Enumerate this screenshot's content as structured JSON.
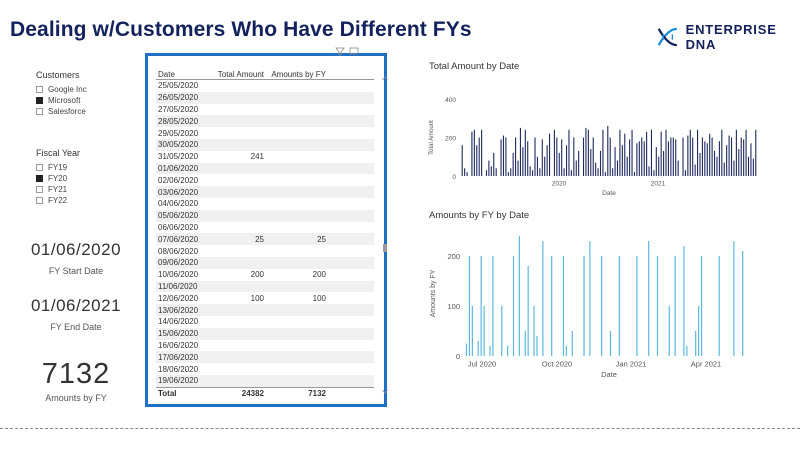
{
  "title": "Dealing w/Customers Who Have Different FYs",
  "logo": {
    "text": "ENTERPRISE DNA",
    "icon": "dna-icon"
  },
  "customers_slicer": {
    "title": "Customers",
    "items": [
      {
        "label": "Google Inc",
        "checked": false
      },
      {
        "label": "Microsoft",
        "checked": true
      },
      {
        "label": "Salesforce",
        "checked": false
      }
    ]
  },
  "fiscal_slicer": {
    "title": "Fiscal Year",
    "items": [
      {
        "label": "FY19",
        "checked": false
      },
      {
        "label": "FY20",
        "checked": true
      },
      {
        "label": "FY21",
        "checked": false
      },
      {
        "label": "FY22",
        "checked": false
      }
    ]
  },
  "cards": {
    "start_value": "01/06/2020",
    "start_label": "FY Start Date",
    "end_value": "01/06/2021",
    "end_label": "FY End Date",
    "amount_value": "7132",
    "amount_label": "Amounts by FY"
  },
  "table": {
    "headers": [
      "Date",
      "Total Amount",
      "Amounts by FY"
    ],
    "rows": [
      [
        "25/05/2020",
        "",
        ""
      ],
      [
        "26/05/2020",
        "",
        ""
      ],
      [
        "27/05/2020",
        "",
        ""
      ],
      [
        "28/05/2020",
        "",
        ""
      ],
      [
        "29/05/2020",
        "",
        ""
      ],
      [
        "30/05/2020",
        "",
        ""
      ],
      [
        "31/05/2020",
        "241",
        ""
      ],
      [
        "01/06/2020",
        "",
        ""
      ],
      [
        "02/06/2020",
        "",
        ""
      ],
      [
        "03/06/2020",
        "",
        ""
      ],
      [
        "04/06/2020",
        "",
        ""
      ],
      [
        "05/06/2020",
        "",
        ""
      ],
      [
        "06/06/2020",
        "",
        ""
      ],
      [
        "07/06/2020",
        "25",
        "25"
      ],
      [
        "08/06/2020",
        "",
        ""
      ],
      [
        "09/06/2020",
        "",
        ""
      ],
      [
        "10/06/2020",
        "200",
        "200"
      ],
      [
        "11/06/2020",
        "",
        ""
      ],
      [
        "12/06/2020",
        "100",
        "100"
      ],
      [
        "13/06/2020",
        "",
        ""
      ],
      [
        "14/06/2020",
        "",
        ""
      ],
      [
        "15/06/2020",
        "",
        ""
      ],
      [
        "16/06/2020",
        "",
        ""
      ],
      [
        "17/06/2020",
        "",
        ""
      ],
      [
        "18/06/2020",
        "",
        ""
      ],
      [
        "19/06/2020",
        "",
        ""
      ]
    ],
    "total": [
      "Total",
      "24382",
      "7132"
    ]
  },
  "chart_data": [
    {
      "type": "bar",
      "title": "Total Amount by Date",
      "xlabel": "Date",
      "ylabel": "Total Amount",
      "ylim": [
        0,
        400
      ],
      "yticks": [
        0,
        200,
        400
      ],
      "xticks": [
        "2020",
        "2021"
      ],
      "color": "#1e2a5e",
      "grid": false,
      "values": [
        160,
        40,
        20,
        0,
        230,
        240,
        160,
        200,
        240,
        0,
        30,
        80,
        50,
        120,
        40,
        0,
        190,
        210,
        200,
        20,
        40,
        120,
        200,
        80,
        250,
        150,
        240,
        180,
        50,
        30,
        200,
        100,
        40,
        190,
        100,
        160,
        220,
        0,
        240,
        200,
        120,
        190,
        40,
        160,
        240,
        30,
        200,
        80,
        130,
        0,
        200,
        250,
        240,
        140,
        200,
        70,
        40,
        130,
        240,
        20,
        260,
        200,
        40,
        150,
        80,
        240,
        160,
        220,
        100,
        190,
        240,
        20,
        170,
        180,
        200,
        180,
        230,
        50,
        240,
        30,
        150,
        100,
        230,
        130,
        240,
        180,
        200,
        200,
        190,
        80,
        0,
        200,
        30,
        210,
        240,
        200,
        60,
        240,
        120,
        200,
        180,
        170,
        220,
        200,
        130,
        100,
        180,
        240,
        70,
        160,
        210,
        200,
        80,
        240,
        140,
        200,
        190,
        240,
        100,
        170,
        90,
        240
      ]
    },
    {
      "type": "bar",
      "title": "Amounts by FY by Date",
      "xlabel": "Date",
      "ylabel": "Amounts by FY",
      "ylim": [
        0,
        250
      ],
      "yticks": [
        0,
        100,
        200
      ],
      "xticks": [
        "Jul 2020",
        "Oct 2020",
        "Jan 2021",
        "Apr 2021"
      ],
      "color": "#5db8e0",
      "grid": false,
      "values": [
        25,
        200,
        100,
        0,
        30,
        200,
        100,
        0,
        20,
        200,
        0,
        0,
        100,
        0,
        20,
        0,
        200,
        0,
        240,
        0,
        50,
        180,
        0,
        100,
        40,
        0,
        230,
        0,
        0,
        200,
        0,
        0,
        0,
        200,
        20,
        0,
        50,
        0,
        0,
        0,
        200,
        0,
        230,
        0,
        0,
        0,
        200,
        0,
        0,
        50,
        0,
        0,
        200,
        0,
        0,
        0,
        0,
        0,
        200,
        0,
        0,
        0,
        230,
        0,
        0,
        200,
        0,
        0,
        0,
        100,
        0,
        200,
        0,
        0,
        220,
        20,
        0,
        0,
        50,
        100,
        200,
        0,
        0,
        0,
        0,
        0,
        200,
        0,
        0,
        0,
        0,
        230,
        0,
        0,
        210,
        0,
        0,
        0
      ]
    }
  ]
}
